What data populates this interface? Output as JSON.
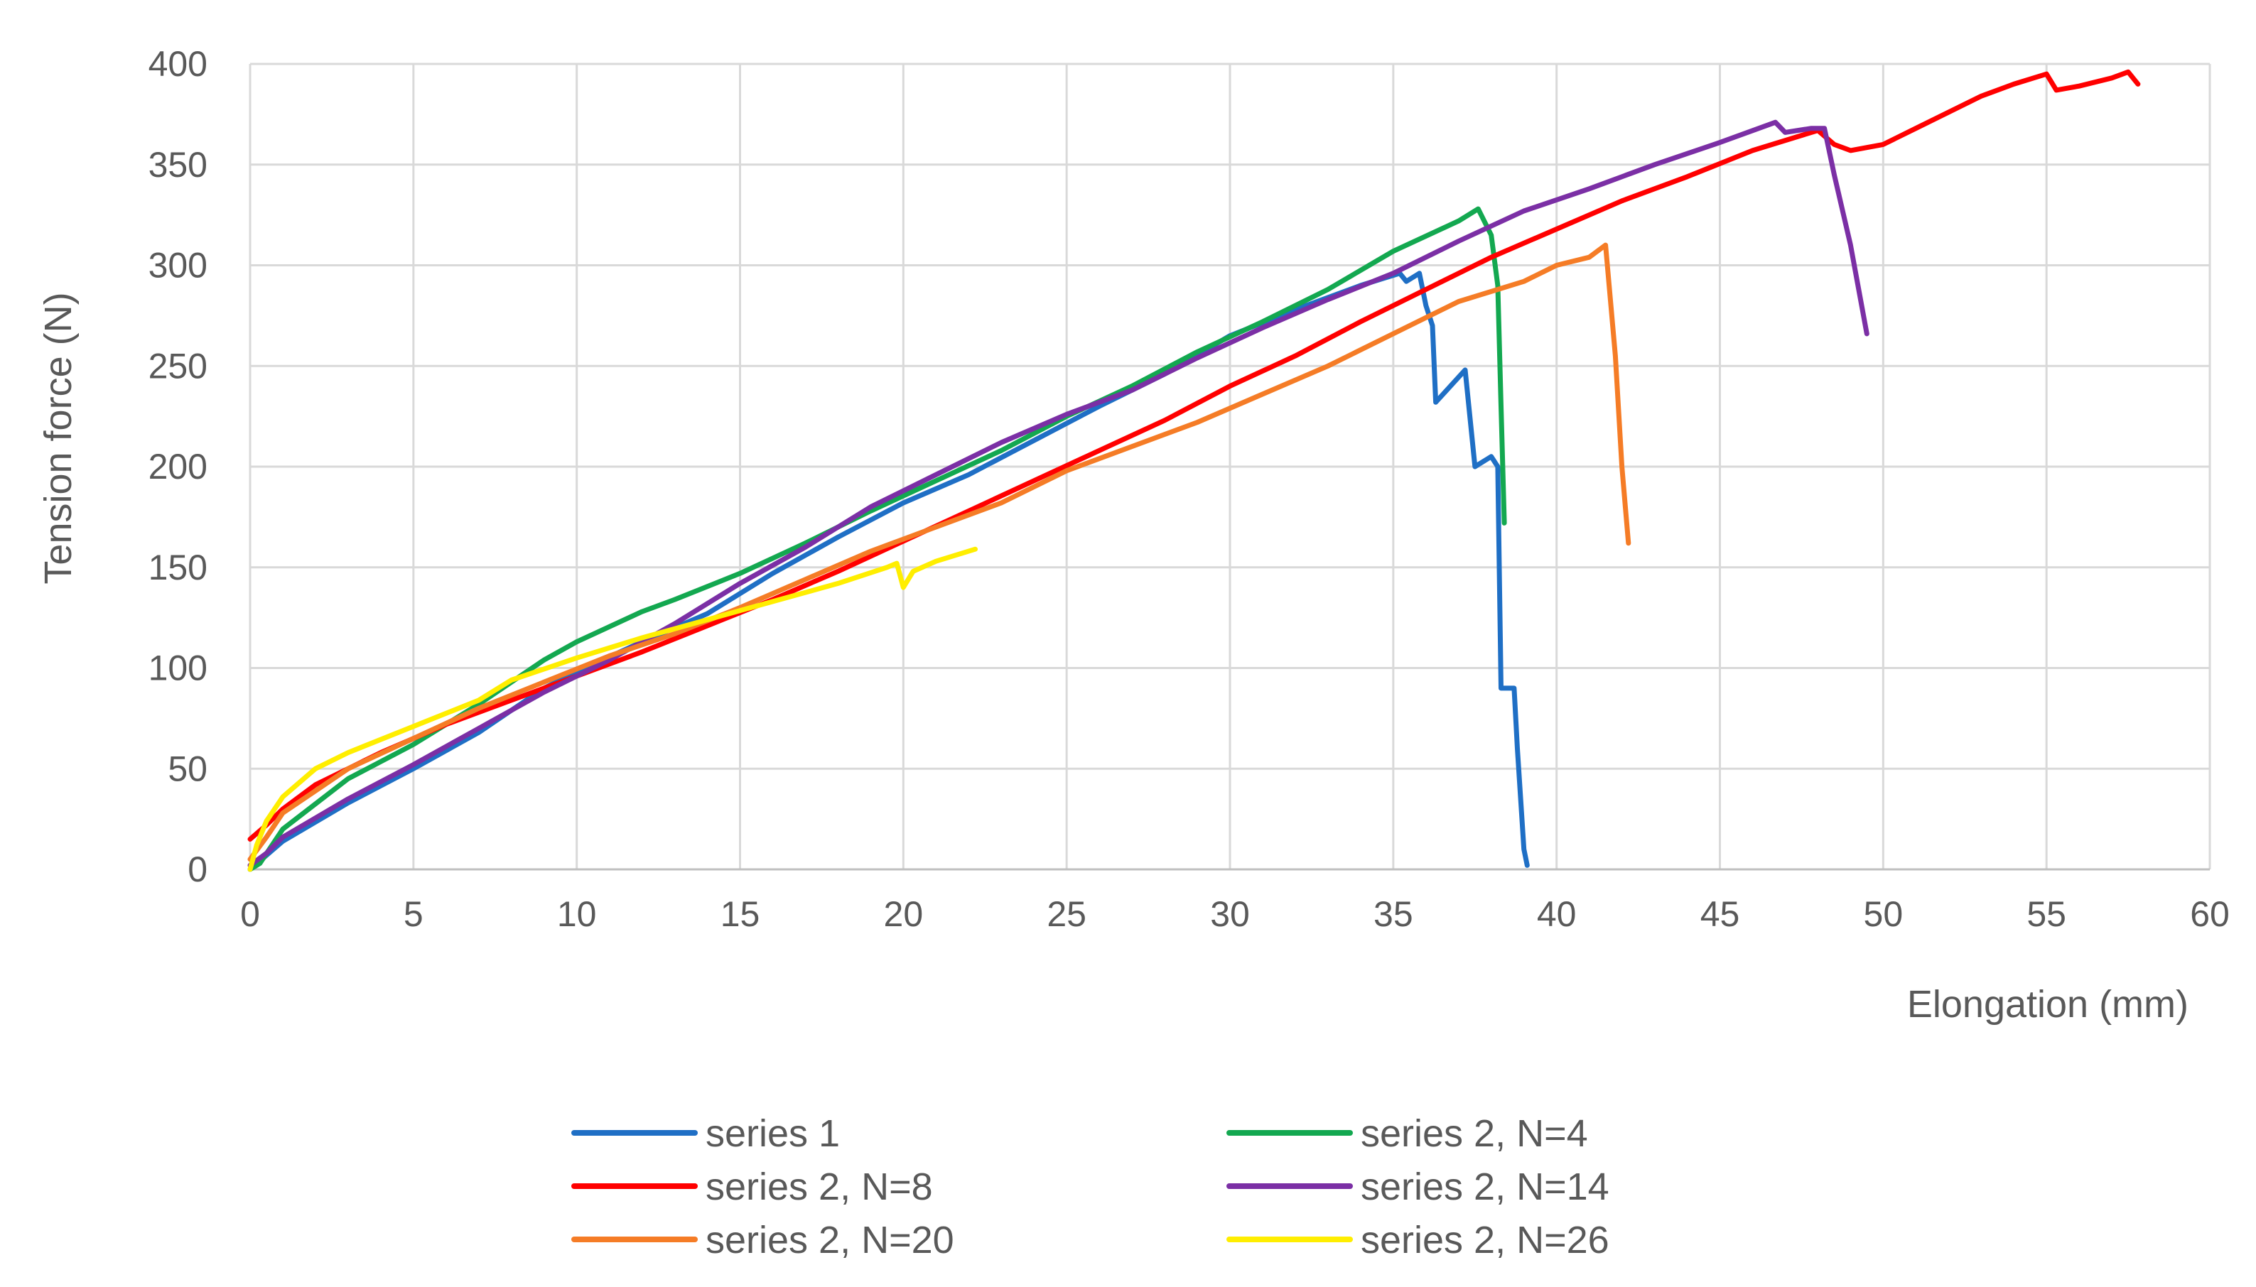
{
  "chart_data": {
    "type": "line",
    "title": "",
    "xlabel": "Elongation (mm)",
    "ylabel": "Tension force (N)",
    "xlim": [
      0,
      60
    ],
    "ylim": [
      0,
      400
    ],
    "x_ticks": [
      "0",
      "5",
      "10",
      "15",
      "20",
      "25",
      "30",
      "35",
      "40",
      "45",
      "50",
      "55",
      "60"
    ],
    "y_ticks": [
      "0",
      "50",
      "100",
      "150",
      "200",
      "250",
      "300",
      "350",
      "400"
    ],
    "grid": true,
    "legend_position": "bottom",
    "series": [
      {
        "name": "series 1",
        "color": "#1f6fc5",
        "points": [
          [
            0,
            0
          ],
          [
            0.5,
            7
          ],
          [
            1,
            14
          ],
          [
            3,
            33
          ],
          [
            5,
            50
          ],
          [
            7,
            68
          ],
          [
            9,
            90
          ],
          [
            10,
            98
          ],
          [
            12,
            113
          ],
          [
            14,
            127
          ],
          [
            16,
            147
          ],
          [
            18,
            165
          ],
          [
            20,
            182
          ],
          [
            22,
            196
          ],
          [
            24,
            213
          ],
          [
            26,
            230
          ],
          [
            28,
            246
          ],
          [
            30,
            265
          ],
          [
            32,
            278
          ],
          [
            34,
            290
          ],
          [
            35.2,
            296
          ],
          [
            35.4,
            292
          ],
          [
            35.8,
            296
          ],
          [
            36,
            280
          ],
          [
            36.2,
            270
          ],
          [
            36.3,
            232
          ],
          [
            37.2,
            248
          ],
          [
            37.5,
            200
          ],
          [
            38,
            205
          ],
          [
            38.2,
            200
          ],
          [
            38.3,
            90
          ],
          [
            38.7,
            90
          ],
          [
            38.8,
            60
          ],
          [
            39.0,
            10
          ],
          [
            39.1,
            2
          ]
        ]
      },
      {
        "name": "series 2, N=4",
        "color": "#13a850",
        "points": [
          [
            0,
            0
          ],
          [
            0.3,
            3
          ],
          [
            1,
            20
          ],
          [
            3,
            45
          ],
          [
            5,
            62
          ],
          [
            7,
            82
          ],
          [
            9,
            104
          ],
          [
            10,
            113
          ],
          [
            12,
            128
          ],
          [
            13,
            134
          ],
          [
            15,
            147
          ],
          [
            17,
            162
          ],
          [
            19,
            178
          ],
          [
            21,
            193
          ],
          [
            23,
            208
          ],
          [
            25,
            225
          ],
          [
            27,
            240
          ],
          [
            29,
            257
          ],
          [
            31,
            272
          ],
          [
            33,
            288
          ],
          [
            35,
            307
          ],
          [
            37,
            322
          ],
          [
            37.6,
            328
          ],
          [
            38.0,
            315
          ],
          [
            38.2,
            290
          ],
          [
            38.3,
            230
          ],
          [
            38.4,
            172
          ]
        ]
      },
      {
        "name": "series 2, N=8",
        "color": "#ff0000",
        "points": [
          [
            0,
            15
          ],
          [
            0.5,
            22
          ],
          [
            1,
            30
          ],
          [
            2,
            42
          ],
          [
            4,
            58
          ],
          [
            6,
            72
          ],
          [
            8,
            84
          ],
          [
            10,
            96
          ],
          [
            12,
            108
          ],
          [
            14,
            121
          ],
          [
            16,
            134
          ],
          [
            18,
            148
          ],
          [
            20,
            163
          ],
          [
            22,
            178
          ],
          [
            24,
            193
          ],
          [
            26,
            208
          ],
          [
            28,
            223
          ],
          [
            30,
            240
          ],
          [
            32,
            255
          ],
          [
            34,
            272
          ],
          [
            36,
            288
          ],
          [
            38,
            304
          ],
          [
            40,
            318
          ],
          [
            42,
            332
          ],
          [
            44,
            344
          ],
          [
            46,
            357
          ],
          [
            48,
            367
          ],
          [
            48.5,
            360
          ],
          [
            49,
            357
          ],
          [
            50,
            360
          ],
          [
            51,
            368
          ],
          [
            53,
            384
          ],
          [
            54,
            390
          ],
          [
            55,
            395
          ],
          [
            55.3,
            387
          ],
          [
            56,
            389
          ],
          [
            57,
            393
          ],
          [
            57.5,
            396
          ],
          [
            57.8,
            390
          ]
        ]
      },
      {
        "name": "series 2, N=14",
        "color": "#7b2fa5",
        "points": [
          [
            0,
            2
          ],
          [
            0.5,
            8
          ],
          [
            1,
            16
          ],
          [
            3,
            35
          ],
          [
            5,
            52
          ],
          [
            7,
            70
          ],
          [
            9,
            88
          ],
          [
            11,
            104
          ],
          [
            13,
            122
          ],
          [
            15,
            142
          ],
          [
            17,
            160
          ],
          [
            19,
            180
          ],
          [
            21,
            196
          ],
          [
            23,
            212
          ],
          [
            25,
            226
          ],
          [
            27,
            238
          ],
          [
            29,
            254
          ],
          [
            31,
            269
          ],
          [
            33,
            283
          ],
          [
            35,
            296
          ],
          [
            37,
            312
          ],
          [
            39,
            327
          ],
          [
            41,
            338
          ],
          [
            43,
            350
          ],
          [
            45,
            361
          ],
          [
            46.7,
            371
          ],
          [
            47,
            366
          ],
          [
            47.8,
            368
          ],
          [
            48.2,
            368
          ],
          [
            48.5,
            345
          ],
          [
            49,
            310
          ],
          [
            49.5,
            266
          ]
        ]
      },
      {
        "name": "series 2, N=20",
        "color": "#f57c26",
        "points": [
          [
            0,
            5
          ],
          [
            0.5,
            16
          ],
          [
            1,
            28
          ],
          [
            3,
            50
          ],
          [
            5,
            65
          ],
          [
            7,
            80
          ],
          [
            9,
            93
          ],
          [
            11,
            106
          ],
          [
            13,
            117
          ],
          [
            15,
            130
          ],
          [
            17,
            144
          ],
          [
            19,
            158
          ],
          [
            21,
            170
          ],
          [
            23,
            182
          ],
          [
            25,
            198
          ],
          [
            27,
            210
          ],
          [
            29,
            222
          ],
          [
            31,
            236
          ],
          [
            33,
            250
          ],
          [
            35,
            266
          ],
          [
            37,
            282
          ],
          [
            39,
            292
          ],
          [
            40,
            300
          ],
          [
            41,
            304
          ],
          [
            41.5,
            310
          ],
          [
            41.8,
            255
          ],
          [
            42.0,
            200
          ],
          [
            42.2,
            162
          ]
        ]
      },
      {
        "name": "series 2, N=26",
        "color": "#ffee00",
        "points": [
          [
            0,
            0
          ],
          [
            0.2,
            12
          ],
          [
            0.5,
            24
          ],
          [
            1,
            36
          ],
          [
            2,
            50
          ],
          [
            3,
            58
          ],
          [
            5,
            71
          ],
          [
            7,
            84
          ],
          [
            8,
            94
          ],
          [
            10,
            105
          ],
          [
            12,
            115
          ],
          [
            14,
            124
          ],
          [
            16,
            133
          ],
          [
            18,
            142
          ],
          [
            19.5,
            150
          ],
          [
            19.8,
            152
          ],
          [
            20,
            140
          ],
          [
            20.3,
            148
          ],
          [
            21,
            153
          ],
          [
            22.2,
            159
          ]
        ]
      }
    ]
  }
}
